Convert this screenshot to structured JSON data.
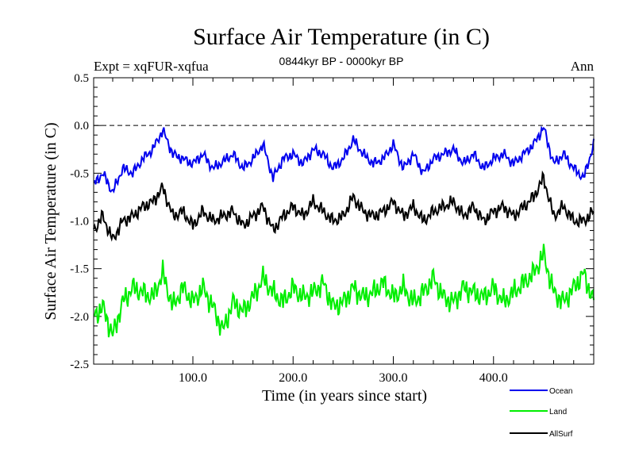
{
  "chart_data": {
    "type": "line",
    "title": "Surface Air Temperature (in C)",
    "subtitle": "0844kyr BP - 0000kyr BP",
    "experiment_label": "Expt = xqFUR-xqfua",
    "season_label": "Ann",
    "xlabel": "Time (in years since start)",
    "ylabel": "Surface Air Temperature (in C)",
    "xlim": [
      1,
      500
    ],
    "ylim": [
      -2.5,
      0.5
    ],
    "x_ticks": [
      100,
      200,
      300,
      400
    ],
    "x_tick_labels": [
      "100.0",
      "200.0",
      "300.0",
      "400.0"
    ],
    "y_ticks": [
      -2.5,
      -2.0,
      -1.5,
      -1.0,
      -0.5,
      0.0,
      0.5
    ],
    "y_tick_labels": [
      "-2.5",
      "-2.0",
      "-1.5",
      "-1.0",
      "-0.5",
      "0.0",
      "0.5"
    ],
    "reference_line": 0.0,
    "legend_position": "bottom-right, outside plot",
    "series": [
      {
        "name": "Ocean",
        "color": "#0000ee",
        "x": [
          1,
          10,
          20,
          30,
          40,
          50,
          60,
          70,
          80,
          90,
          100,
          110,
          120,
          130,
          140,
          150,
          160,
          170,
          180,
          190,
          200,
          210,
          220,
          230,
          240,
          250,
          260,
          270,
          280,
          290,
          300,
          310,
          320,
          330,
          340,
          350,
          360,
          370,
          380,
          390,
          400,
          410,
          420,
          430,
          440,
          450,
          460,
          470,
          480,
          490,
          500
        ],
        "values": [
          -0.62,
          -0.5,
          -0.7,
          -0.45,
          -0.5,
          -0.35,
          -0.25,
          -0.05,
          -0.3,
          -0.35,
          -0.4,
          -0.3,
          -0.45,
          -0.38,
          -0.3,
          -0.45,
          -0.35,
          -0.2,
          -0.55,
          -0.35,
          -0.3,
          -0.4,
          -0.25,
          -0.3,
          -0.45,
          -0.35,
          -0.15,
          -0.3,
          -0.4,
          -0.35,
          -0.2,
          -0.45,
          -0.3,
          -0.5,
          -0.35,
          -0.3,
          -0.25,
          -0.4,
          -0.3,
          -0.45,
          -0.35,
          -0.3,
          -0.4,
          -0.3,
          -0.2,
          -0.02,
          -0.4,
          -0.3,
          -0.45,
          -0.55,
          -0.2
        ]
      },
      {
        "name": "Land",
        "color": "#00ee00",
        "x": [
          1,
          10,
          20,
          30,
          40,
          50,
          60,
          70,
          80,
          90,
          100,
          110,
          120,
          130,
          140,
          150,
          160,
          170,
          180,
          190,
          200,
          210,
          220,
          230,
          240,
          250,
          260,
          270,
          280,
          290,
          300,
          310,
          320,
          330,
          340,
          350,
          360,
          370,
          380,
          390,
          400,
          410,
          420,
          430,
          440,
          450,
          460,
          470,
          480,
          490,
          500
        ],
        "values": [
          -2.0,
          -1.9,
          -2.2,
          -1.85,
          -1.7,
          -1.75,
          -1.8,
          -1.55,
          -1.9,
          -1.7,
          -1.85,
          -1.7,
          -1.9,
          -2.15,
          -1.85,
          -1.95,
          -1.8,
          -1.6,
          -1.75,
          -1.85,
          -1.7,
          -1.8,
          -1.75,
          -1.65,
          -1.9,
          -1.85,
          -1.7,
          -1.8,
          -1.75,
          -1.65,
          -1.8,
          -1.7,
          -1.85,
          -1.75,
          -1.6,
          -1.8,
          -1.85,
          -1.7,
          -1.75,
          -1.8,
          -1.7,
          -1.85,
          -1.75,
          -1.65,
          -1.55,
          -1.35,
          -1.75,
          -1.85,
          -1.7,
          -1.55,
          -1.85
        ]
      },
      {
        "name": "AllSurf",
        "color": "#000000",
        "x": [
          1,
          10,
          20,
          30,
          40,
          50,
          60,
          70,
          80,
          90,
          100,
          110,
          120,
          130,
          140,
          150,
          160,
          170,
          180,
          190,
          200,
          210,
          220,
          230,
          240,
          250,
          260,
          270,
          280,
          290,
          300,
          310,
          320,
          330,
          340,
          350,
          360,
          370,
          380,
          390,
          400,
          410,
          420,
          430,
          440,
          450,
          460,
          470,
          480,
          490,
          500
        ],
        "values": [
          -1.1,
          -0.95,
          -1.2,
          -1.0,
          -0.95,
          -0.85,
          -0.8,
          -0.65,
          -0.95,
          -0.9,
          -1.05,
          -0.9,
          -1.0,
          -0.95,
          -0.9,
          -1.05,
          -0.95,
          -0.85,
          -1.1,
          -0.95,
          -0.85,
          -0.95,
          -0.8,
          -0.9,
          -1.0,
          -0.95,
          -0.75,
          -0.9,
          -0.95,
          -0.9,
          -0.8,
          -0.95,
          -0.85,
          -1.0,
          -0.9,
          -0.85,
          -0.8,
          -0.95,
          -0.85,
          -1.0,
          -0.9,
          -0.85,
          -0.95,
          -0.85,
          -0.75,
          -0.55,
          -0.95,
          -0.85,
          -1.0,
          -1.0,
          -0.9
        ]
      }
    ]
  }
}
